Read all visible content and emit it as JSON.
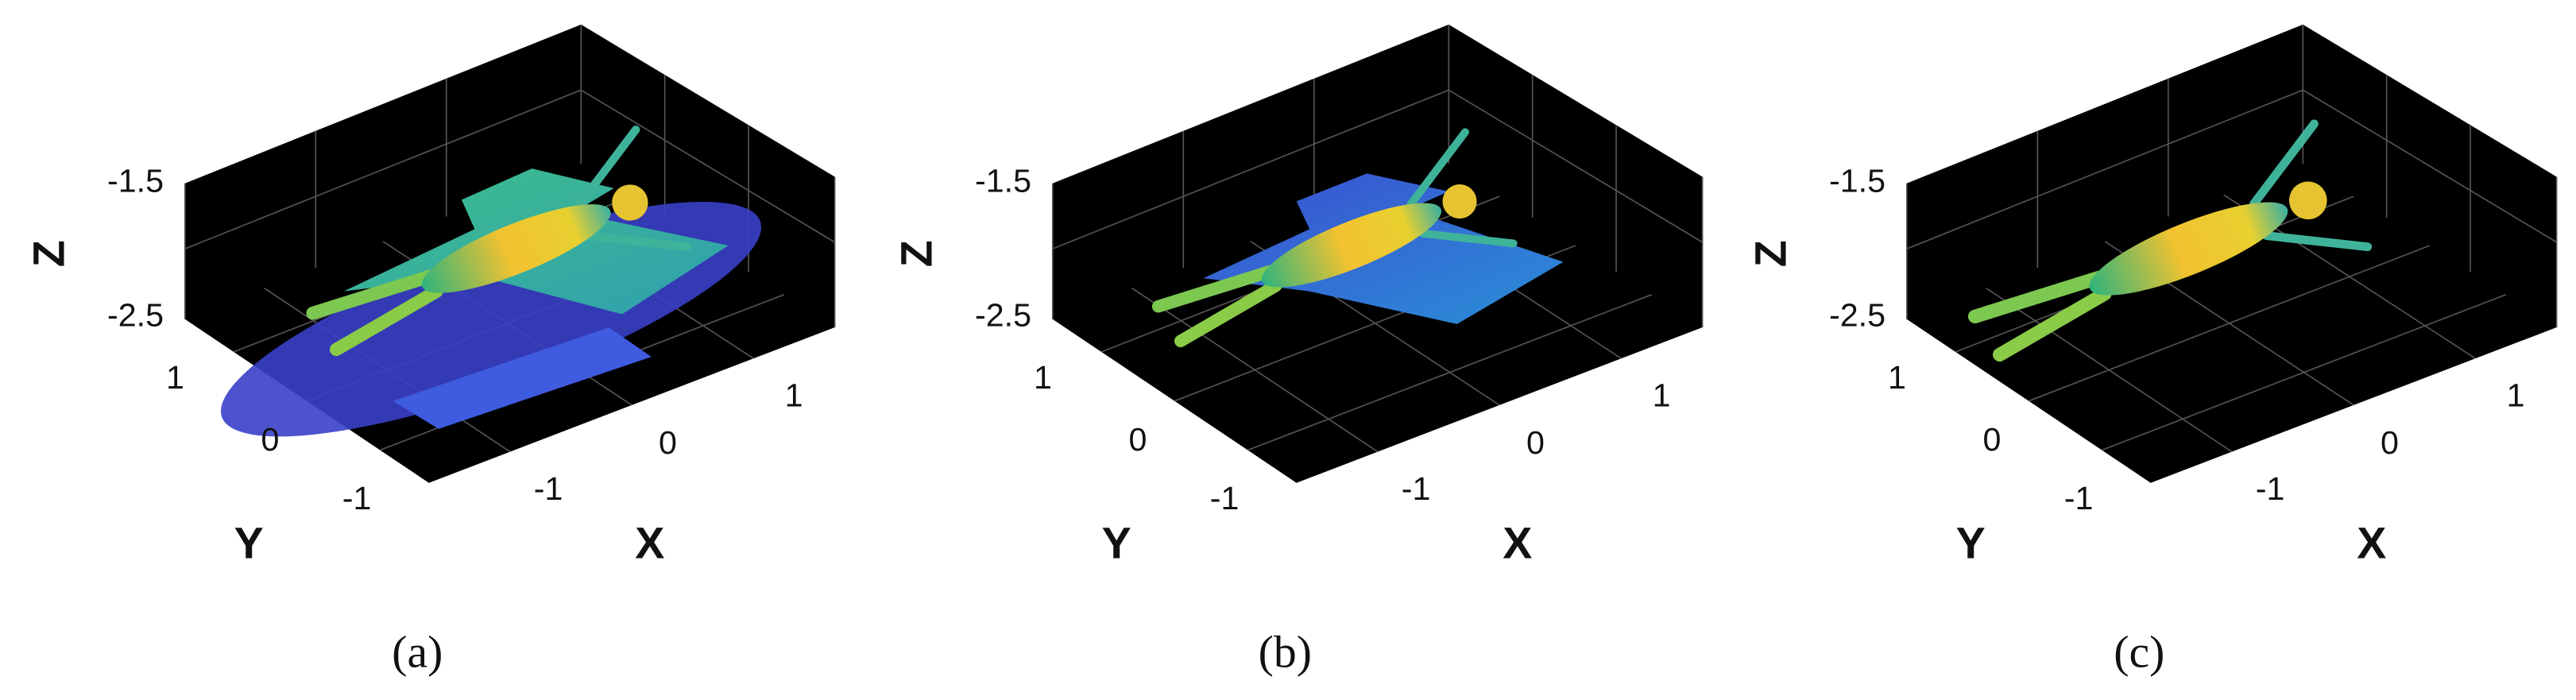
{
  "panels": [
    {
      "caption": "(a)",
      "z_label": "Z",
      "y_label": "Y",
      "x_label": "X",
      "z_ticks": [
        "-1.5",
        "-2.5"
      ],
      "y_ticks": [
        "1",
        "0",
        "-1"
      ],
      "x_ticks": [
        "-1",
        "0",
        "1"
      ]
    },
    {
      "caption": "(b)",
      "z_label": "Z",
      "y_label": "Y",
      "x_label": "X",
      "z_ticks": [
        "-1.5",
        "-2.5"
      ],
      "y_ticks": [
        "1",
        "0",
        "-1"
      ],
      "x_ticks": [
        "-1",
        "0",
        "1"
      ]
    },
    {
      "caption": "(c)",
      "z_label": "Z",
      "y_label": "Y",
      "x_label": "X",
      "z_ticks": [
        "-1.5",
        "-2.5"
      ],
      "y_ticks": [
        "1",
        "0",
        "-1"
      ],
      "x_ticks": [
        "-1",
        "0",
        "1"
      ]
    }
  ]
}
